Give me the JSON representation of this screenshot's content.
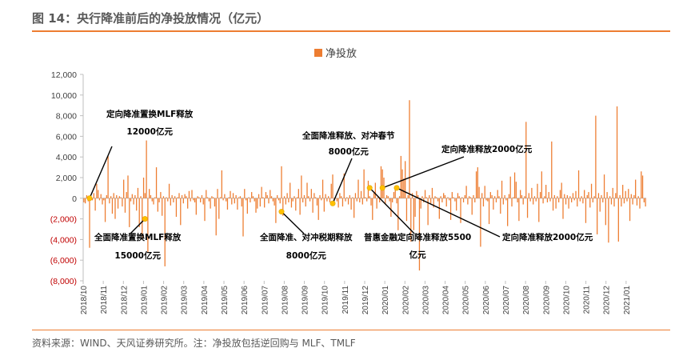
{
  "header": {
    "title": "图 14：央行降准前后的净投放情况（亿元）"
  },
  "footer": {
    "source": "资料来源：WIND、天风证券研究所。注：净投放包括逆回购与 MLF、TMLF"
  },
  "colors": {
    "accent": "#ED7D31",
    "bar": "#ED7D31",
    "marker": "#FFC000",
    "negative_label": "#C00000"
  },
  "chart_data": {
    "type": "bar",
    "legend": {
      "entries": [
        "净投放"
      ],
      "position": "top-center"
    },
    "ylim": [
      -8000,
      12000
    ],
    "yticks": [
      {
        "value": 12000,
        "label": "12,000"
      },
      {
        "value": 10000,
        "label": "10,000"
      },
      {
        "value": 8000,
        "label": "8,000"
      },
      {
        "value": 6000,
        "label": "6,000"
      },
      {
        "value": 4000,
        "label": "4,000"
      },
      {
        "value": 2000,
        "label": "2,000"
      },
      {
        "value": 0,
        "label": "0"
      },
      {
        "value": -2000,
        "label": "(2,000)"
      },
      {
        "value": -4000,
        "label": "(4,000)"
      },
      {
        "value": -6000,
        "label": "(6,000)"
      },
      {
        "value": -8000,
        "label": "(8,000)"
      }
    ],
    "xticks": [
      "2018/10",
      "2018/11",
      "2018/12",
      "2019/01",
      "2019/02",
      "2019/03",
      "2019/04",
      "2019/05",
      "2019/06",
      "2019/07",
      "2019/08",
      "2019/09",
      "2019/10",
      "2019/11",
      "2019/12",
      "2020/01",
      "2020/02",
      "2020/03",
      "2020/04",
      "2020/05",
      "2020/06",
      "2020/07",
      "2020/08",
      "2020/09",
      "2020/10",
      "2020/11",
      "2020/12",
      "2021/01"
    ],
    "series": [
      {
        "name": "净投放",
        "values": [
          -400,
          -500,
          300,
          -300,
          -4800,
          100,
          -200,
          500,
          -1200,
          1400,
          800,
          -200,
          400,
          -600,
          -200,
          -2300,
          300,
          4100,
          -500,
          200,
          -1500,
          500,
          -2000,
          300,
          -1000,
          200,
          100,
          -800,
          1800,
          -1400,
          600,
          2200,
          -2800,
          -300,
          400,
          -600,
          300,
          -1200,
          1000,
          -2800,
          200,
          -4000,
          2000,
          500,
          5600,
          -5200,
          900,
          300,
          -300,
          -600,
          100,
          3000,
          -1300,
          -400,
          600,
          -1700,
          200,
          -6600,
          100,
          -300,
          1400,
          -700,
          300,
          -400,
          200,
          -1800,
          100,
          500,
          -2600,
          300,
          -500,
          400,
          200,
          -1000,
          700,
          -300,
          800,
          -200,
          -400,
          -1600,
          200,
          100,
          -400,
          300,
          -600,
          -2200,
          800,
          100,
          -300,
          -1000,
          200,
          100,
          -800,
          -3600,
          900,
          -2000,
          100,
          2700,
          -200,
          400,
          -300,
          -1100,
          100,
          700,
          -600,
          500,
          -500,
          300,
          -1100,
          100,
          200,
          -800,
          -3700,
          900,
          -200,
          -1500,
          100,
          -400,
          600,
          200,
          -300,
          -1400,
          -1000,
          400,
          -800,
          1100,
          100,
          -900,
          600,
          300,
          -500,
          800,
          200,
          -300,
          -700,
          -2400,
          300,
          -200,
          -500,
          3100,
          -1700,
          200,
          -600,
          500,
          -400,
          1500,
          -900,
          -300,
          200,
          -1200,
          100,
          900,
          -1600,
          2200,
          -400,
          300,
          -800,
          1500,
          200,
          -300,
          900,
          -1400,
          500,
          100,
          -700,
          -2100,
          300,
          -200,
          1800,
          -1300,
          400,
          -300,
          200,
          -400,
          1400,
          2300,
          -500,
          100,
          -300,
          -900,
          500,
          200,
          -800,
          2400,
          -300,
          100,
          -600,
          300,
          -1100,
          100,
          -1900,
          500,
          -300,
          1800,
          -400,
          700,
          -600,
          2800,
          100,
          -300,
          1700,
          200,
          -700,
          -2100,
          500,
          1500,
          -1000,
          200,
          -400,
          3100,
          2800,
          2000,
          -600,
          300,
          200,
          -300,
          -1800,
          -400,
          600,
          900,
          -500,
          -3100,
          200,
          4100,
          2800,
          1900,
          3600,
          -2200,
          300,
          9500,
          -4200,
          500,
          -3100,
          -1800,
          700,
          300,
          -7000,
          -1000,
          200,
          -400,
          800,
          100,
          -2600,
          300,
          -500,
          1000,
          -900,
          200,
          100,
          -300,
          -2000,
          200,
          -400,
          500,
          300,
          -800,
          100,
          -200,
          -2100,
          600,
          100,
          -300,
          -1200,
          500,
          200,
          -2400,
          100,
          -400,
          300,
          1200,
          -600,
          200,
          100,
          -1600,
          300,
          -400,
          2600,
          3000,
          1100,
          -4700,
          500,
          -800,
          1200,
          -200,
          -300,
          -2500,
          600,
          300,
          -1100,
          200,
          -400,
          800,
          200,
          -1500,
          1700,
          -600,
          300,
          -200,
          -2700,
          400,
          2100,
          -800,
          100,
          2500,
          1600,
          -400,
          -2200,
          800,
          300,
          -600,
          200,
          7400,
          -1900,
          500,
          -300,
          1000,
          -600,
          200,
          -300,
          1400,
          -2300,
          600,
          2600,
          -500,
          200,
          1300,
          -400,
          600,
          -300,
          5500,
          -1200,
          300,
          -1000,
          200,
          -400,
          800,
          1500,
          -2000,
          400,
          -600,
          300,
          -1000,
          200,
          -400,
          500,
          -200,
          700,
          -800,
          2700,
          -300,
          200,
          -500,
          800,
          -2400,
          300,
          600,
          -900,
          1400,
          -400,
          200,
          8000,
          -3500,
          500,
          -1300,
          300,
          -400,
          2300,
          -2600,
          600,
          -4300,
          200,
          -600,
          1000,
          -800,
          500,
          8900,
          -4200,
          300,
          -800,
          1300,
          -500,
          700,
          -300,
          900,
          -2200,
          400,
          -600,
          300,
          1800,
          -700,
          200,
          -1000,
          2600,
          2200,
          -400,
          -800
        ]
      }
    ],
    "annotations": [
      {
        "text": "定向降准置换MLF释放",
        "text2": "12000亿元",
        "value": 0
      },
      {
        "text": "全面降准置换MLF释放",
        "text2": "15000亿元",
        "value": -2000
      },
      {
        "text": "全面降准、对冲税期释放",
        "text2": "8000亿元",
        "value": -1300
      },
      {
        "text": "全面降准释放、对冲春节",
        "text2": "8000亿元",
        "value": -500
      },
      {
        "text": "普惠金融定向降准释放5500",
        "text2": "亿元",
        "value": 1000
      },
      {
        "text": "定向降准释放2000亿元",
        "text2": "",
        "value": 1000
      },
      {
        "text": "定向降准释放2000亿元",
        "text2": "",
        "value": 1000
      }
    ]
  }
}
